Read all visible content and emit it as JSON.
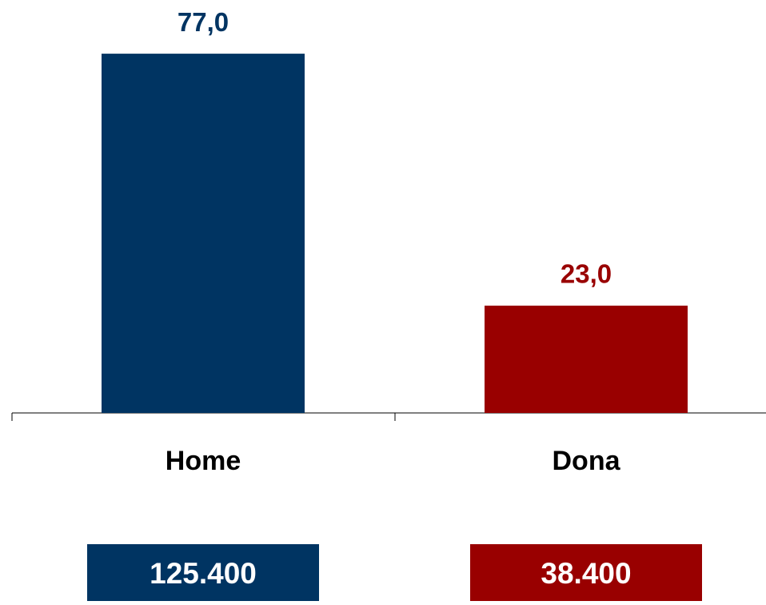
{
  "chart_data": {
    "type": "bar",
    "categories": [
      "Home",
      "Dona"
    ],
    "values": [
      77.0,
      23.0
    ],
    "value_labels": [
      "77,0",
      "23,0"
    ],
    "colors": [
      "#003462",
      "#990000"
    ],
    "ylim": [
      0,
      80
    ],
    "totals": [
      "125.400",
      "38.400"
    ]
  }
}
